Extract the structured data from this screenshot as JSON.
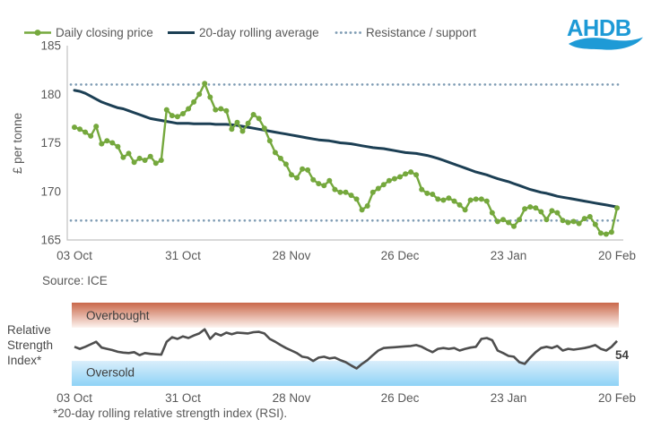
{
  "legend": {
    "items": [
      {
        "label": "Daily closing price",
        "type": "line-marker"
      },
      {
        "label": "20-day rolling average",
        "type": "line"
      },
      {
        "label": "Resistance / support",
        "type": "dotted"
      }
    ]
  },
  "logo": {
    "text": "AHDB",
    "color": "#1e9ad6"
  },
  "source": "Source: ICE",
  "footnote": "*20-day rolling relative strength index (RSI).",
  "rsi_axis_label": {
    "line1": "Relative",
    "line2": "Strength",
    "line3": "Index*"
  },
  "colors": {
    "daily": "#75a83d",
    "rolling_average": "#1c3f54",
    "guide_dotted": "#7f9cb4",
    "rsi_line": "#4e4e4e",
    "overbought_top": "#c9674a",
    "overbought_bottom": "#fdf3ef",
    "oversold_top": "#d9eefb",
    "oversold_bottom": "#8fd3f6",
    "axis_line": "#c2c2c2",
    "text": "#595959"
  },
  "chart_data": [
    {
      "type": "line",
      "name": "price-chart",
      "ylabel": "£ per tonne",
      "x_tick_labels": [
        "03 Oct",
        "31 Oct",
        "28 Nov",
        "26 Dec",
        "23 Jan",
        "20 Feb"
      ],
      "y_ticks": [
        165,
        170,
        175,
        180,
        185
      ],
      "ylim": [
        165,
        185
      ],
      "resistance": 181,
      "support": 167,
      "grid": false,
      "legend_position": "top",
      "series": [
        {
          "name": "Daily closing price",
          "marker": true,
          "values": [
            176.6,
            176.4,
            176.1,
            175.7,
            176.7,
            174.9,
            175.2,
            175.0,
            174.6,
            173.5,
            173.9,
            173.0,
            173.4,
            173.2,
            173.6,
            172.9,
            173.2,
            178.4,
            177.8,
            177.7,
            178.0,
            178.5,
            179.2,
            180.0,
            181.1,
            179.7,
            178.4,
            178.5,
            178.3,
            176.4,
            177.1,
            176.2,
            177.0,
            177.9,
            177.5,
            176.5,
            175.2,
            174.0,
            173.4,
            172.8,
            171.7,
            171.4,
            172.3,
            172.2,
            171.2,
            170.8,
            170.6,
            171.1,
            170.2,
            169.9,
            169.9,
            169.6,
            169.2,
            168.1,
            168.5,
            169.9,
            170.3,
            170.7,
            171.1,
            171.3,
            171.5,
            171.8,
            172.0,
            171.7,
            170.2,
            169.8,
            169.7,
            169.2,
            169.1,
            169.3,
            169.0,
            168.6,
            168.1,
            169.1,
            169.2,
            169.2,
            169.0,
            167.8,
            166.9,
            167.1,
            166.8,
            166.4,
            167.1,
            168.2,
            168.4,
            168.3,
            167.9,
            167.1,
            168.0,
            167.8,
            167.0,
            166.8,
            166.9,
            166.7,
            167.2,
            167.4,
            166.6,
            165.7,
            165.6,
            165.8,
            168.3
          ]
        },
        {
          "name": "20-day rolling average",
          "marker": false,
          "values": [
            180.4,
            180.3,
            180.1,
            179.8,
            179.5,
            179.2,
            179.0,
            178.8,
            178.6,
            178.5,
            178.3,
            178.1,
            177.9,
            177.7,
            177.5,
            177.4,
            177.3,
            177.2,
            177.1,
            177.0,
            177.0,
            177.0,
            176.95,
            176.95,
            176.95,
            176.95,
            176.9,
            176.9,
            176.9,
            176.85,
            176.8,
            176.7,
            176.6,
            176.5,
            176.4,
            176.3,
            176.2,
            176.1,
            176.0,
            175.9,
            175.8,
            175.7,
            175.6,
            175.5,
            175.4,
            175.3,
            175.25,
            175.2,
            175.1,
            175.0,
            174.95,
            174.9,
            174.8,
            174.7,
            174.6,
            174.5,
            174.45,
            174.4,
            174.3,
            174.2,
            174.1,
            174.0,
            173.95,
            173.9,
            173.8,
            173.7,
            173.55,
            173.4,
            173.2,
            173.0,
            172.8,
            172.6,
            172.4,
            172.2,
            172.0,
            171.85,
            171.7,
            171.5,
            171.3,
            171.15,
            171.0,
            170.8,
            170.6,
            170.4,
            170.2,
            170.05,
            169.9,
            169.8,
            169.65,
            169.5,
            169.4,
            169.3,
            169.2,
            169.1,
            169.0,
            168.9,
            168.8,
            168.7,
            168.6,
            168.5,
            168.4
          ]
        }
      ]
    },
    {
      "type": "line",
      "name": "rsi-chart",
      "x_tick_labels": [
        "03 Oct",
        "31 Oct",
        "28 Nov",
        "26 Dec",
        "23 Jan",
        "20 Feb"
      ],
      "ylim": [
        0,
        100
      ],
      "bands": [
        {
          "label": "Overbought",
          "range": [
            70,
            100
          ]
        },
        {
          "label": "Oversold",
          "range": [
            0,
            30
          ]
        }
      ],
      "last_value_label": "54",
      "series": [
        {
          "name": "20-day rolling RSI",
          "values": [
            47,
            44.5,
            47,
            50,
            53,
            46,
            44.5,
            43,
            41,
            40,
            39.5,
            40.5,
            37,
            39.5,
            38.5,
            38,
            37.5,
            53,
            58.5,
            56.5,
            59.5,
            57.5,
            60.5,
            63,
            68,
            56.5,
            63,
            60.5,
            64,
            62,
            64,
            63.5,
            63,
            64.5,
            65,
            63,
            56.5,
            53,
            49,
            45.5,
            42.5,
            39.5,
            35,
            34,
            30,
            34,
            35,
            33,
            34,
            31,
            28.5,
            24.5,
            21,
            26.5,
            31,
            37,
            42.5,
            45.5,
            46,
            46.5,
            47,
            47.5,
            48,
            49,
            47,
            43.5,
            40.5,
            44.5,
            45.5,
            44.5,
            45.5,
            42.5,
            44.5,
            46,
            47,
            56.5,
            57.5,
            55,
            42.5,
            39.5,
            36,
            35,
            28.5,
            26.5,
            34,
            40.5,
            45.5,
            47,
            45.5,
            48,
            42.5,
            44.5,
            43.5,
            44.5,
            45.5,
            47,
            49,
            44.5,
            42.5,
            47,
            54
          ]
        }
      ]
    }
  ]
}
